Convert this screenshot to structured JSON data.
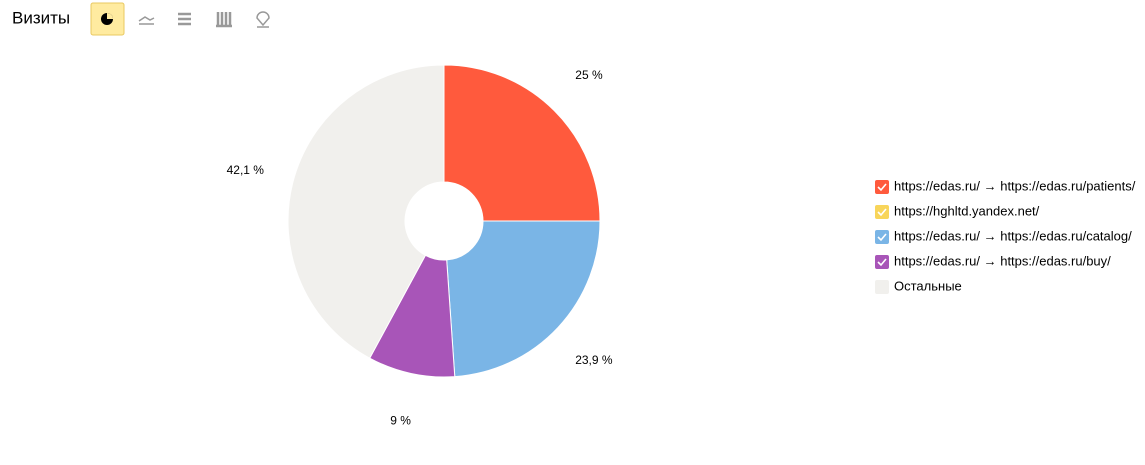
{
  "header": {
    "title": "Визиты"
  },
  "chart_data": {
    "type": "pie",
    "categories": [
      "https://edas.ru/ → https://edas.ru/patients/",
      "https://hghltd.yandex.net/",
      "https://edas.ru/ → https://edas.ru/catalog/",
      "https://edas.ru/ → https://edas.ru/buy/",
      "Остальные"
    ],
    "values": [
      25,
      0,
      23.9,
      9,
      42.1
    ],
    "value_labels": [
      "25 %",
      null,
      "23,9 %",
      "9 %",
      "42,1 %"
    ],
    "colors": [
      "#ff5a3d",
      "#f8d55a",
      "#7ab5e6",
      "#a855b8",
      "#f1f0ed"
    ],
    "checked": [
      true,
      true,
      true,
      true,
      false
    ]
  }
}
